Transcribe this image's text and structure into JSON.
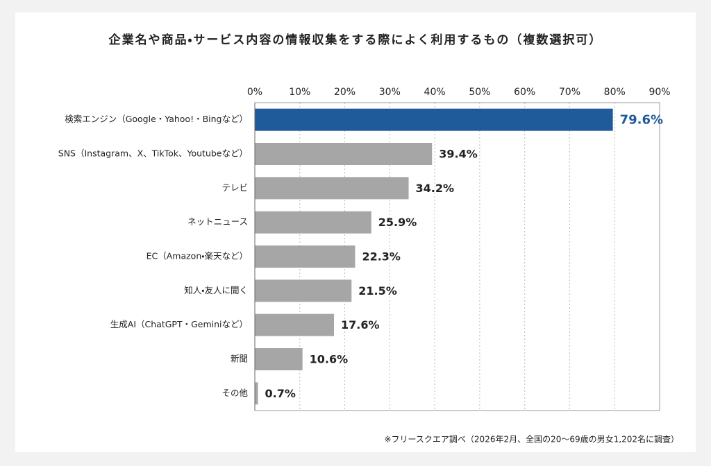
{
  "chart_data": {
    "type": "hbar",
    "title": "企業名や商品・サービス内容の情報収集をする際によく利用するもの（複数選択可）",
    "categories": [
      "検索エンジン（Google・Yahoo!・Bingなど）",
      "SNS（Instagram、X、TikTok、Youtubeなど）",
      "テレビ",
      "ネットニュース",
      "EC（Amazon・楽天など）",
      "知人・友人に聞く",
      "生成AI（ChatGPT・Geminiなど）",
      "新聞",
      "その他"
    ],
    "values": [
      79.6,
      39.4,
      34.2,
      25.9,
      22.3,
      21.5,
      17.6,
      10.6,
      0.7
    ],
    "value_labels": [
      "79.6%",
      "39.4%",
      "34.2%",
      "25.9%",
      "22.3%",
      "21.5%",
      "17.6%",
      "10.6%",
      "0.7%"
    ],
    "colors": [
      "#1f5a9a",
      "#a6a6a6",
      "#a6a6a6",
      "#a6a6a6",
      "#a6a6a6",
      "#a6a6a6",
      "#a6a6a6",
      "#a6a6a6",
      "#a6a6a6"
    ],
    "label_colors": [
      "#1f5a9a",
      "#222222",
      "#222222",
      "#222222",
      "#222222",
      "#222222",
      "#222222",
      "#222222",
      "#222222"
    ],
    "xlim": [
      0,
      90
    ],
    "xticks": [
      {
        "value": 0,
        "label": "0%"
      },
      {
        "value": 10,
        "label": "10%"
      },
      {
        "value": 20,
        "label": "20%"
      },
      {
        "value": 30,
        "label": "30%"
      },
      {
        "value": 40,
        "label": "40%"
      },
      {
        "value": 50,
        "label": "50%"
      },
      {
        "value": 60,
        "label": "60%"
      },
      {
        "value": 70,
        "label": "70%"
      },
      {
        "value": 80,
        "label": "80%"
      },
      {
        "value": 90,
        "label": "90%"
      }
    ],
    "grid": true,
    "note": "※フリースクエア調べ（2026年2月、全国の20～69歳の男女1,202名に調査）"
  }
}
